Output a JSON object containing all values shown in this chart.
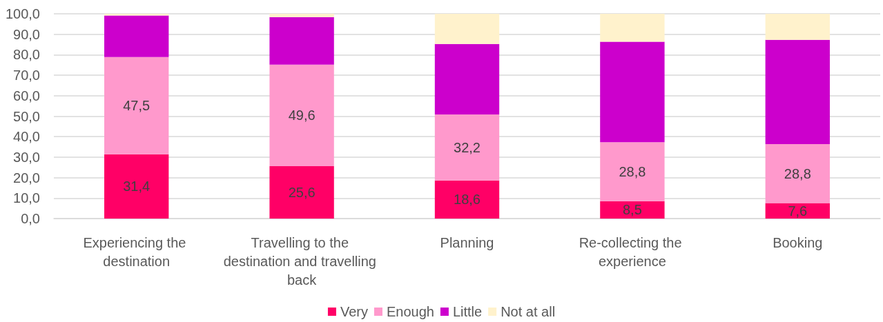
{
  "chart_data": {
    "type": "bar",
    "stacked": true,
    "categories": [
      "Experiencing the destination",
      "Travelling to the destination and travelling back",
      "Planning",
      "Re-collecting the experience",
      "Booking"
    ],
    "series": [
      {
        "name": "Very",
        "color": "#ff0066",
        "values": [
          31.4,
          25.6,
          18.6,
          8.5,
          7.6
        ],
        "value_labels": [
          "31,4",
          "25,6",
          "18,6",
          "8,5",
          "7,6"
        ]
      },
      {
        "name": "Enough",
        "color": "#ff99cc",
        "values": [
          47.5,
          49.6,
          32.2,
          28.8,
          28.8
        ],
        "value_labels": [
          "47,5",
          "49,6",
          "32,2",
          "28,8",
          "28,8"
        ]
      },
      {
        "name": "Little",
        "color": "#cc00cc",
        "values": [
          20.3,
          23.2,
          34.5,
          49.1,
          50.9
        ]
      },
      {
        "name": "Not at all",
        "color": "#fff2cc",
        "values": [
          0.8,
          1.6,
          14.7,
          13.6,
          12.7
        ]
      }
    ],
    "ylim": [
      0,
      100
    ],
    "yticks": [
      {
        "value": 0,
        "label": "0,0"
      },
      {
        "value": 10,
        "label": "10,0"
      },
      {
        "value": 20,
        "label": "20,0"
      },
      {
        "value": 30,
        "label": "30,0"
      },
      {
        "value": 40,
        "label": "40,0"
      },
      {
        "value": 50,
        "label": "50,0"
      },
      {
        "value": 60,
        "label": "60,0"
      },
      {
        "value": 70,
        "label": "70,0"
      },
      {
        "value": 80,
        "label": "80,0"
      },
      {
        "value": 90,
        "label": "90,0"
      },
      {
        "value": 100,
        "label": "100,0"
      }
    ],
    "grid": "y",
    "legend": "bottom"
  }
}
